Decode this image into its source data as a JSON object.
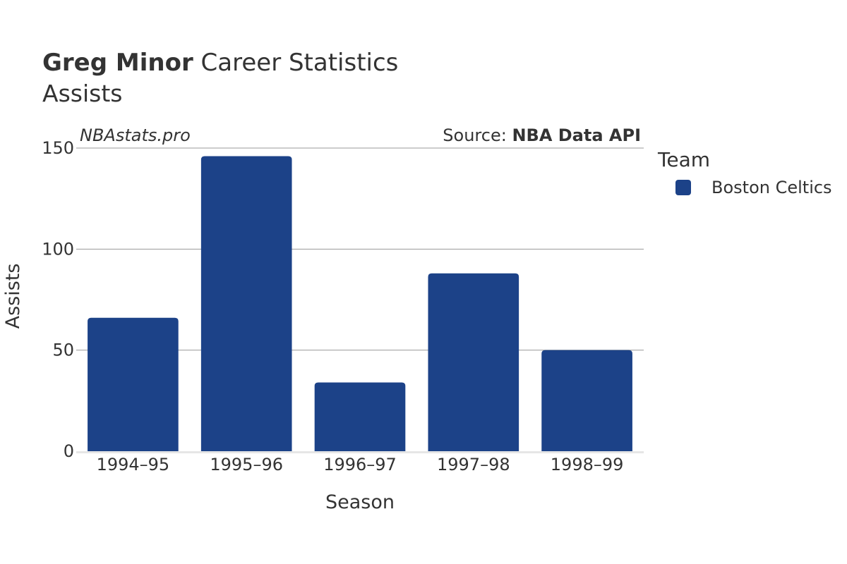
{
  "chart_data": {
    "type": "bar",
    "title_bold": "Greg Minor",
    "title_rest": "Career Statistics",
    "subtitle": "Assists",
    "watermark": "NBAstats.pro",
    "source_prefix": "Source: ",
    "source_bold": "NBA Data API",
    "xlabel": "Season",
    "ylabel": "Assists",
    "categories": [
      "1994–95",
      "1995–96",
      "1996–97",
      "1997–98",
      "1998–99"
    ],
    "series": [
      {
        "name": "Boston Celtics",
        "values": [
          66,
          146,
          34,
          88,
          50
        ],
        "color": "#1c4288"
      }
    ],
    "ylim": [
      0,
      150
    ],
    "yticks": [
      0,
      50,
      100,
      150
    ],
    "ytick_labels": [
      "0",
      "50",
      "100",
      "150"
    ],
    "grid": true,
    "legend": {
      "title": "Team",
      "position": "right"
    }
  }
}
